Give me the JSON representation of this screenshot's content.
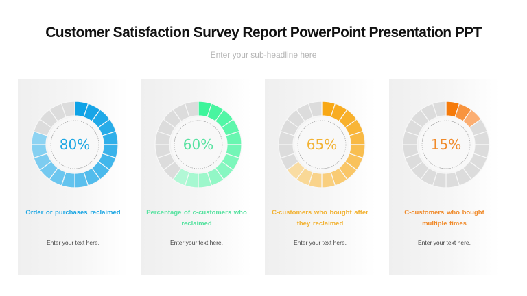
{
  "header": {
    "title": "Customer Satisfaction Survey Report PowerPoint Presentation PPT",
    "subtitle": "Enter your sub-headline here"
  },
  "cards": [
    {
      "percent_label": "80%",
      "title": "Order or purchases reclaimed",
      "body": "Enter your text here.",
      "accent": "#1ba6e3",
      "gradient": [
        "#0ea2e6",
        "#8ed3f2"
      ]
    },
    {
      "percent_label": "60%",
      "title": "Percentage of c-customers who reclaimed",
      "body": "Enter your text here.",
      "accent": "#57e2a0",
      "gradient": [
        "#3df59b",
        "#b2f8d6"
      ]
    },
    {
      "percent_label": "65%",
      "title": "C-customers who bought after they reclaimed",
      "body": "Enter your text here.",
      "accent": "#f2b233",
      "gradient": [
        "#f8a815",
        "#f9dca2"
      ]
    },
    {
      "percent_label": "15%",
      "title": "C-customers who bought multiple times",
      "body": "Enter your text here.",
      "accent": "#f08a2a",
      "gradient": [
        "#f57a0a",
        "#fbae72"
      ]
    }
  ],
  "chart_data": {
    "type": "pie",
    "title": "Customer Satisfaction Survey Report",
    "categories": [
      "Order or purchases reclaimed",
      "Percentage of c-customers who reclaimed",
      "C-customers who bought after they reclaimed",
      "C-customers who bought multiple times"
    ],
    "values": [
      80,
      60,
      65,
      15
    ],
    "unit": "%",
    "segments_per_ring": 20,
    "filled_segments": [
      16,
      12,
      13,
      3
    ],
    "track_color": "#dcdcdc"
  }
}
